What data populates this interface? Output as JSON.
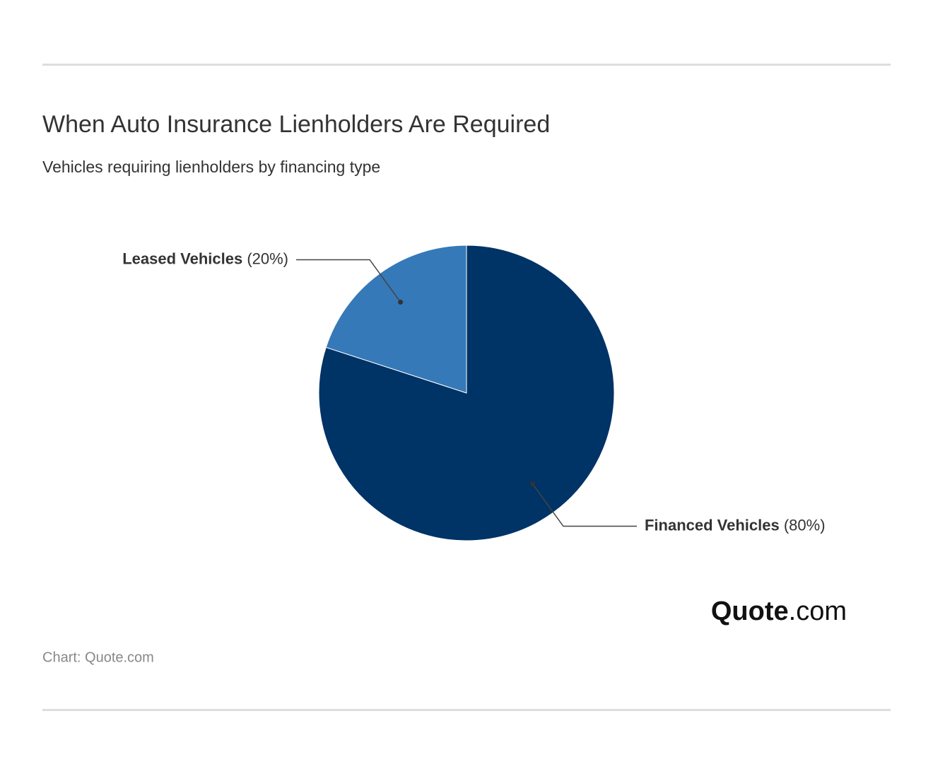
{
  "chart_data": {
    "type": "pie",
    "title": "When Auto Insurance Lienholders Are Required",
    "subtitle": "Vehicles requiring lienholders by financing type",
    "categories": [
      "Financed Vehicles",
      "Leased Vehicles"
    ],
    "values": [
      80,
      20
    ],
    "value_labels": [
      "(80%)",
      "(20%)"
    ],
    "colors": [
      "#003366",
      "#3579b8"
    ],
    "source": "Chart: Quote.com",
    "logo": {
      "name": "Quote",
      "suffix": ".com"
    }
  }
}
